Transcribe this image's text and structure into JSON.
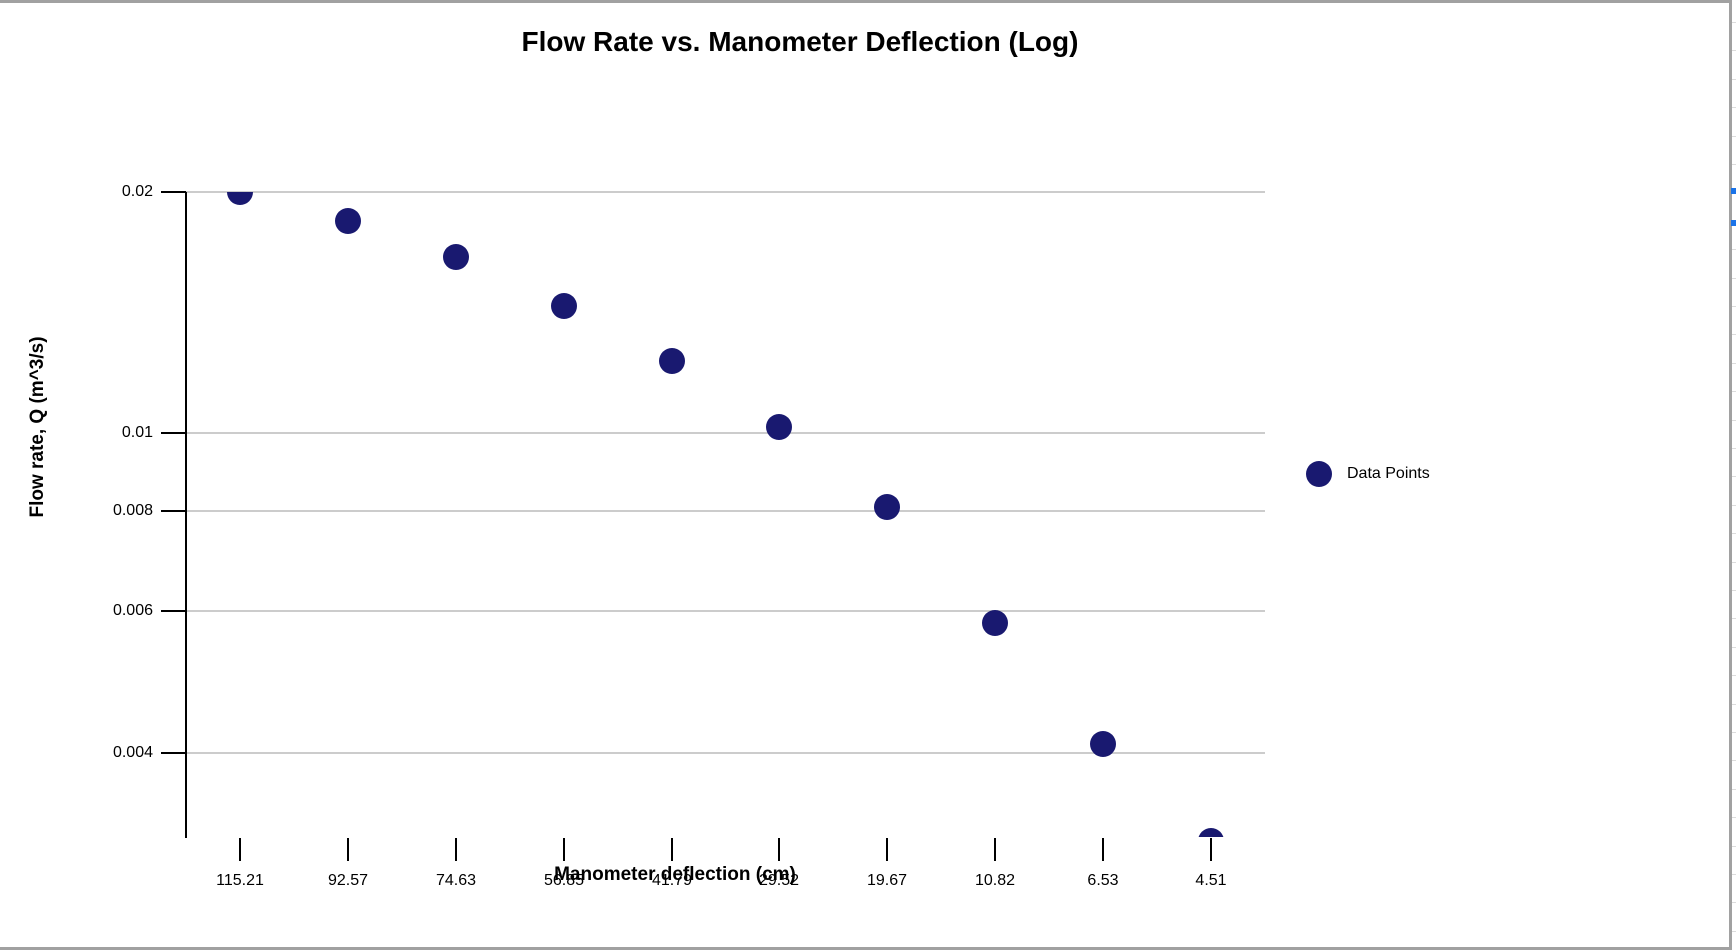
{
  "window": {
    "background": "#ffffff",
    "frame_border_color": "#a1a1a1"
  },
  "sheet_strip": {
    "row_line_color": "#dcdcdc",
    "selection_marker_color": "#1a73e8",
    "selection_marker_y": [
      188,
      220
    ]
  },
  "chart_data": {
    "type": "scatter",
    "title": "Flow Rate vs. Manometer Deflection (Log)",
    "xlabel": "Manometer deflection (cm)",
    "ylabel": "Flow rate, Q (m^3/s)",
    "y_scale": "log",
    "x_axis_type": "category",
    "grid": true,
    "legend": {
      "label": "Data Points",
      "position": "right"
    },
    "x_categories": [
      "115.21",
      "92.57",
      "74.63",
      "56.85",
      "41.79",
      "29.52",
      "19.67",
      "10.82",
      "6.53",
      "4.51"
    ],
    "y_tick_labels": [
      "0.02",
      "0.01",
      "0.008",
      "0.006",
      "0.004"
    ],
    "y_tick_values": [
      0.02,
      0.01,
      0.008,
      0.006,
      0.004
    ],
    "ylim": [
      0.0031,
      0.02
    ],
    "series": [
      {
        "name": "Data Points",
        "color": "#191970",
        "x": [
          115.21,
          92.57,
          74.63,
          56.85,
          41.79,
          29.52,
          19.67,
          10.82,
          6.53,
          4.51
        ],
        "y": [
          0.02,
          0.0184,
          0.0166,
          0.0144,
          0.0123,
          0.0102,
          0.0081,
          0.0058,
          0.0041,
          0.0031
        ]
      }
    ],
    "colors": {
      "point": "#191970",
      "gridline": "#cccccc",
      "axis": "#000000",
      "text": "#000000"
    }
  }
}
